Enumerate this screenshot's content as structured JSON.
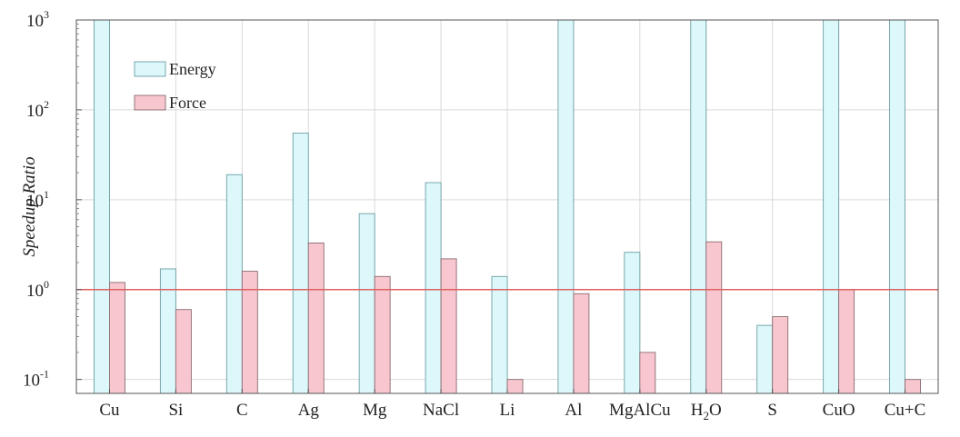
{
  "chart_data": {
    "type": "bar",
    "ylabel": "Speedup Ratio",
    "yscale": "log",
    "ylim": [
      0.07,
      1000
    ],
    "ytick_values": [
      0.1,
      1,
      10,
      100,
      1000
    ],
    "ytick_labels": [
      {
        "base": "10",
        "exp": "-1"
      },
      {
        "base": "10",
        "exp": "0"
      },
      {
        "base": "10",
        "exp": "1"
      },
      {
        "base": "10",
        "exp": "2"
      },
      {
        "base": "10",
        "exp": "3"
      }
    ],
    "categories": [
      {
        "text": "Cu"
      },
      {
        "text": "Si"
      },
      {
        "text": "C"
      },
      {
        "text": "Ag"
      },
      {
        "text": "Mg"
      },
      {
        "text": "NaCl"
      },
      {
        "text": "Li"
      },
      {
        "text": "Al"
      },
      {
        "text": "MgAlCu"
      },
      {
        "text": "H",
        "sub": "2",
        "tail": "O"
      },
      {
        "text": "S"
      },
      {
        "text": "CuO"
      },
      {
        "text": "Cu+C"
      }
    ],
    "series": [
      {
        "name": "Energy",
        "color": "#dcf8fb",
        "stroke": "#6b9ea3",
        "values": [
          1000,
          1.7,
          19,
          55,
          7,
          15.5,
          1.4,
          1000,
          2.6,
          1000,
          0.4,
          1000,
          1000
        ]
      },
      {
        "name": "Force",
        "color": "#f8c6cf",
        "stroke": "#8a6b70",
        "values": [
          1.2,
          0.6,
          1.6,
          3.3,
          1.4,
          2.2,
          0.1,
          0.9,
          0.2,
          3.4,
          0.5,
          1.0,
          0.1
        ]
      }
    ],
    "reference_line": {
      "value": 1,
      "color": "#e06060"
    },
    "grid": true,
    "legend_position": "top-left"
  }
}
